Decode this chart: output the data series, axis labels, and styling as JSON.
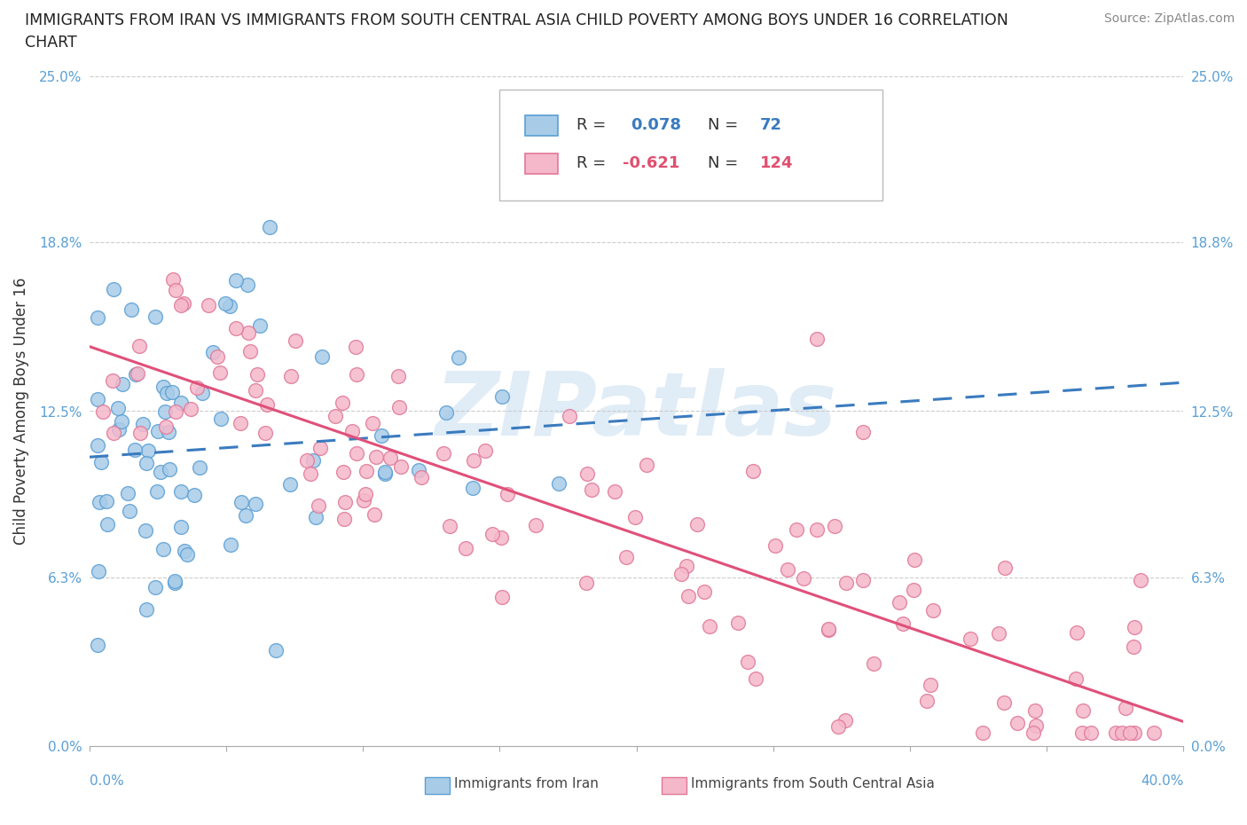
{
  "title_line1": "IMMIGRANTS FROM IRAN VS IMMIGRANTS FROM SOUTH CENTRAL ASIA CHILD POVERTY AMONG BOYS UNDER 16 CORRELATION",
  "title_line2": "CHART",
  "ylabel": "Child Poverty Among Boys Under 16",
  "source": "Source: ZipAtlas.com",
  "watermark": "ZIPatlas",
  "legend_iran_R": "0.078",
  "legend_iran_N": "72",
  "legend_sca_R": "-0.621",
  "legend_sca_N": "124",
  "yticks": [
    0.0,
    6.3,
    12.5,
    18.8,
    25.0
  ],
  "ytick_labels": [
    "0.0%",
    "6.3%",
    "12.5%",
    "18.8%",
    "25.0%"
  ],
  "ylim": [
    0,
    25.0
  ],
  "xlim": [
    0,
    40.0
  ],
  "iran_scatter_face": "#a8cce8",
  "iran_scatter_edge": "#5b9fd4",
  "sca_scatter_face": "#f5b8cb",
  "sca_scatter_edge": "#e07898",
  "iran_line_color": "#3a7bbf",
  "sca_line_color": "#e0507a",
  "background_color": "#ffffff",
  "grid_color": "#cccccc",
  "grid_style": "--",
  "watermark_color": "#c8ddf0",
  "iran_line_start_y": 11.2,
  "iran_line_end_y": 13.0,
  "sca_line_start_y": 15.2,
  "sca_line_end_y": 0.8
}
